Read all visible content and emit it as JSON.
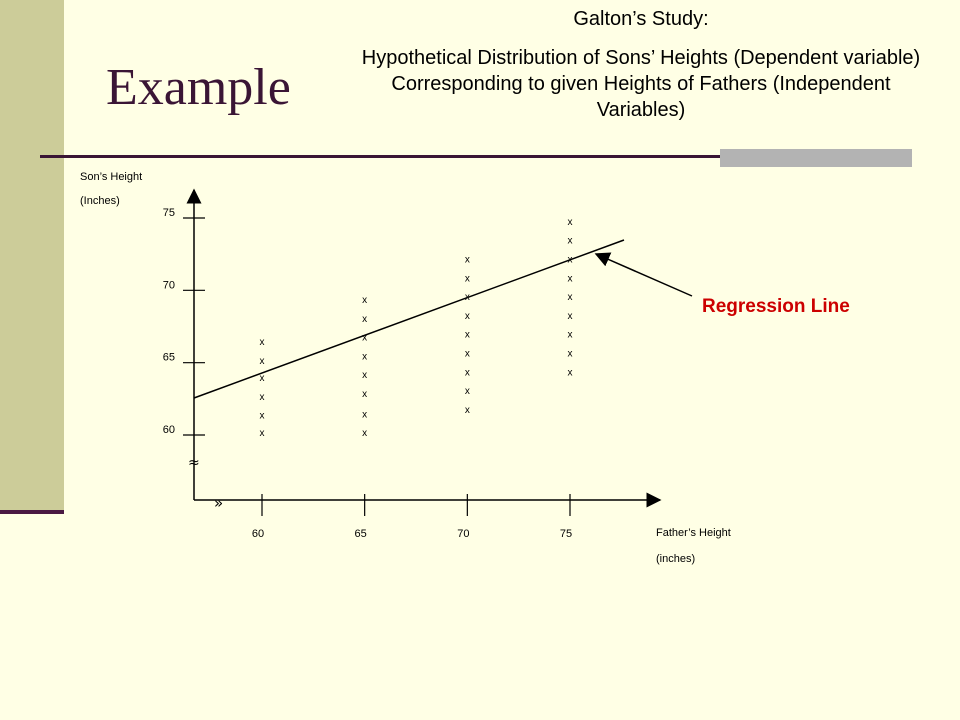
{
  "slide": {
    "title": "Example"
  },
  "heading": {
    "line1": "Galton’s Study:",
    "line2": "Hypothetical Distribution of Sons’ Heights (Dependent variable) Corresponding to given Heights of Fathers (Independent Variables)"
  },
  "colors": {
    "background": "#FFFFE5",
    "title": "#3A1535",
    "callout": "#CC0000",
    "sidebar": "#CCCC99"
  },
  "chart_data": {
    "type": "scatter",
    "title": "",
    "ylabel_lines": [
      "Son’s Height",
      "(Inches)"
    ],
    "xlabel_lines": [
      "Father’s Height",
      "(inches)"
    ],
    "marker_text": "x",
    "x_ticks": [
      "60",
      "65",
      "70",
      "75"
    ],
    "y_ticks": [
      "75",
      "70",
      "65",
      "60"
    ],
    "axis_break_y": "≈",
    "axis_break_x": "»",
    "xlim": [
      56.5,
      80.5
    ],
    "ylim": [
      56.5,
      77.5
    ],
    "points": [
      {
        "x": 60,
        "y": [
          66.5,
          65.2,
          64,
          62.7,
          61.4,
          60.2
        ]
      },
      {
        "x": 65,
        "y": [
          69.4,
          68.1,
          66.8,
          65.5,
          64.2,
          62.9,
          61.5,
          60.2
        ]
      },
      {
        "x": 70,
        "y": [
          72.2,
          70.9,
          69.6,
          68.3,
          67,
          65.7,
          64.4,
          63.1,
          61.8
        ]
      },
      {
        "x": 75,
        "y": [
          74.8,
          73.5,
          72.2,
          70.9,
          69.6,
          68.3,
          67,
          65.7,
          64.4
        ]
      }
    ],
    "regression_line": {
      "x": [
        56.5,
        78
      ],
      "y": [
        62.5,
        71.8
      ],
      "label": "Regression Line"
    }
  }
}
